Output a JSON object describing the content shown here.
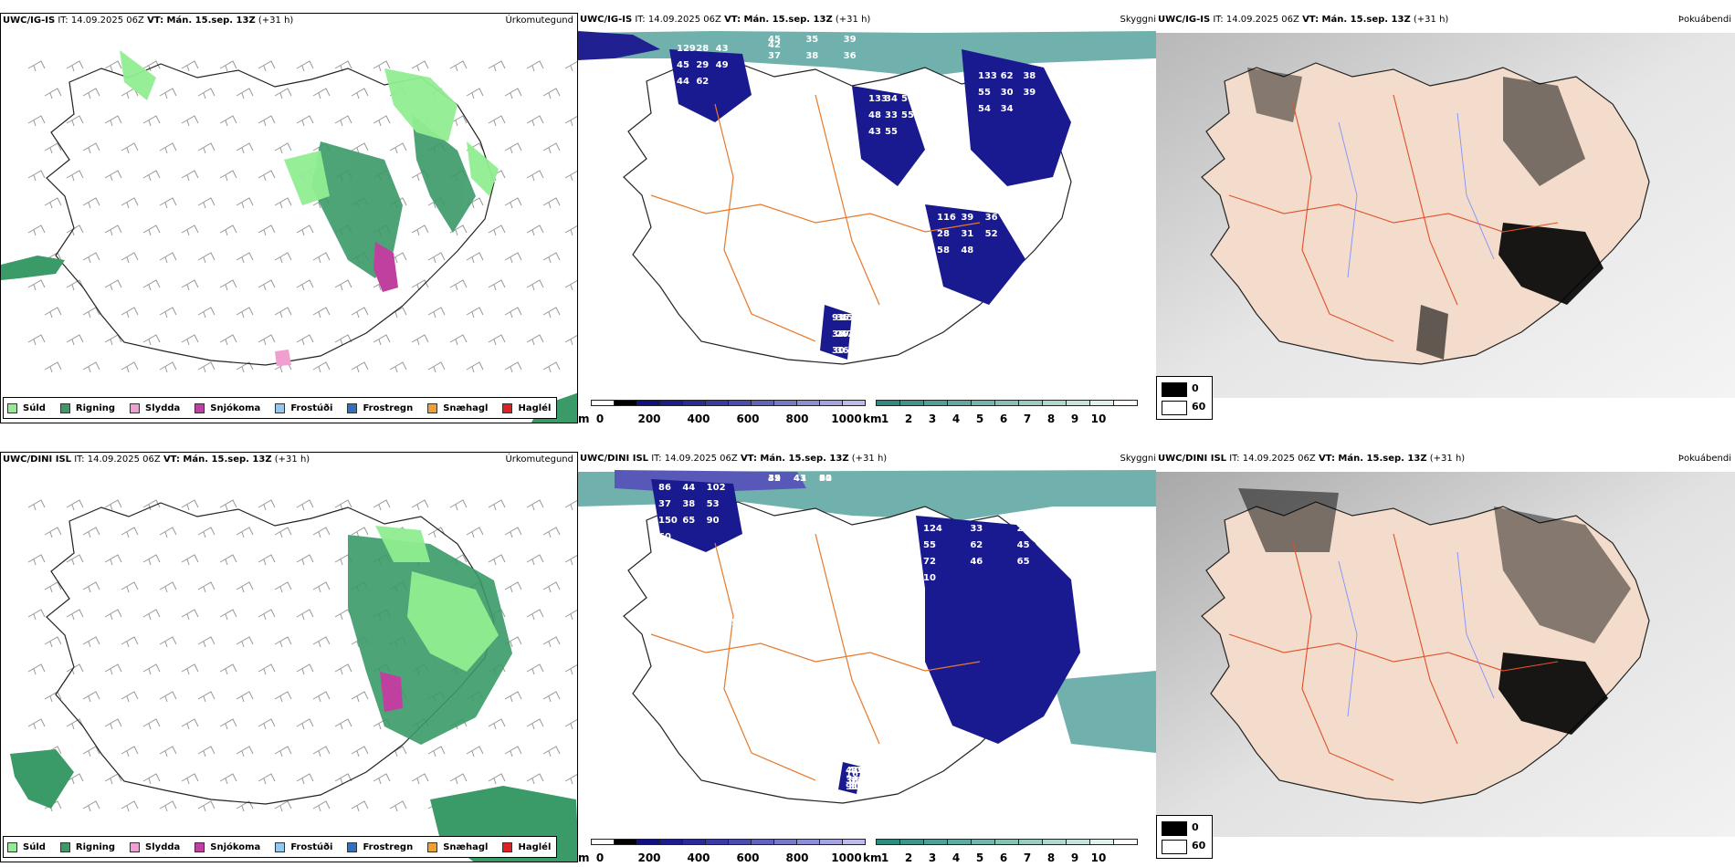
{
  "rows": [
    {
      "precip": {
        "model": "UWC/IG-IS",
        "it_label": "IT:",
        "it_value": "14.09.2025 06Z",
        "vt_label": "VT: Mán. 15.sep. 13Z",
        "lead": "(+31 h)",
        "ptype": "Úrkomutegund"
      },
      "vis": {
        "model": "UWC/IG-IS",
        "it_label": "IT:",
        "it_value": "14.09.2025 06Z",
        "vt_label": "VT: Mán. 15.sep. 13Z",
        "lead": "(+31 h)",
        "ptype": "Skyggni",
        "labels": [
          "129",
          "133",
          "133",
          "116",
          "91",
          "45",
          "28",
          "34",
          "62",
          "39",
          "36",
          "35",
          "43",
          "50",
          "38",
          "36",
          "45",
          "39",
          "45",
          "48",
          "55",
          "28",
          "36",
          "37",
          "29",
          "33",
          "30",
          "31",
          "29",
          "38",
          "49",
          "55",
          "39",
          "52",
          "47",
          "36",
          "44",
          "43",
          "54",
          "58",
          "30",
          "42",
          "62",
          "55",
          "34",
          "48",
          "36"
        ]
      },
      "fog": {
        "model": "UWC/IG-IS",
        "it_label": "IT:",
        "it_value": "14.09.2025 06Z",
        "vt_label": "VT: Mán. 15.sep. 13Z",
        "lead": "(+31 h)",
        "ptype": "Þokuábendi",
        "leg_max": "0",
        "leg_min": "60"
      }
    },
    {
      "precip": {
        "model": "UWC/DINI ISL",
        "it_label": "IT:",
        "it_value": "14.09.2025 06Z",
        "vt_label": "VT: Mán. 15.sep. 13Z",
        "lead": "(+31 h)",
        "ptype": "Úrkomutegund"
      },
      "vis": {
        "model": "UWC/DINI ISL",
        "it_label": "IT:",
        "it_value": "14.09.2025 06Z",
        "vt_label": "VT: Mán. 15.sep. 13Z",
        "lead": "(+31 h)",
        "ptype": "Skyggni",
        "labels": [
          "86",
          "124",
          "410",
          "35",
          "44",
          "44",
          "33",
          "40",
          "41",
          "88",
          "102",
          "259",
          "39",
          "54",
          "51",
          "37",
          "55",
          "91",
          "42",
          "57",
          "38",
          "62",
          "31",
          "43",
          "46",
          "53",
          "45",
          "32",
          "92",
          "47",
          "150",
          "72",
          "38",
          "39",
          "81",
          "65",
          "46",
          "55",
          "43",
          "33",
          "90",
          "65",
          "74",
          "40",
          "70",
          "60",
          "10",
          "16"
        ]
      },
      "fog": {
        "model": "UWC/DINI ISL",
        "it_label": "IT:",
        "it_value": "14.09.2025 06Z",
        "vt_label": "VT: Mán. 15.sep. 13Z",
        "lead": "(+31 h)",
        "ptype": "Þokuábendi",
        "leg_max": "0",
        "leg_min": "60"
      }
    }
  ],
  "precip_legend": [
    {
      "label": "Súld",
      "color": "#90ee90"
    },
    {
      "label": "Rigning",
      "color": "#3a9a68"
    },
    {
      "label": "Slydda",
      "color": "#f0a0d0"
    },
    {
      "label": "Snjókoma",
      "color": "#c040a0"
    },
    {
      "label": "Frostúði",
      "color": "#90c8f0"
    },
    {
      "label": "Frostregn",
      "color": "#3070c0"
    },
    {
      "label": "Snæhagl",
      "color": "#f0a030"
    },
    {
      "label": "Haglél",
      "color": "#e02020"
    }
  ],
  "cloudbase_bar": {
    "unit": "m",
    "ticks": [
      "0",
      "200",
      "400",
      "600",
      "800",
      "1000"
    ],
    "colors": [
      "#ffffff",
      "#000000",
      "#101080",
      "#1c1c8c",
      "#2a2a98",
      "#3a3aa4",
      "#4c4cb0",
      "#6262bc",
      "#7878c8",
      "#8e8ed4",
      "#a4a4e0",
      "#bcbcec"
    ]
  },
  "vis_bar": {
    "unit": "km",
    "ticks": [
      "1",
      "2",
      "3",
      "4",
      "5",
      "6",
      "7",
      "8",
      "9",
      "10"
    ],
    "colors": [
      "#2e8b80",
      "#3f958a",
      "#50a095",
      "#62aaa0",
      "#75b5ab",
      "#88c0b6",
      "#9ccbc2",
      "#b1d7cf",
      "#c7e3dd",
      "#e0f0ec",
      "#ffffff"
    ]
  }
}
